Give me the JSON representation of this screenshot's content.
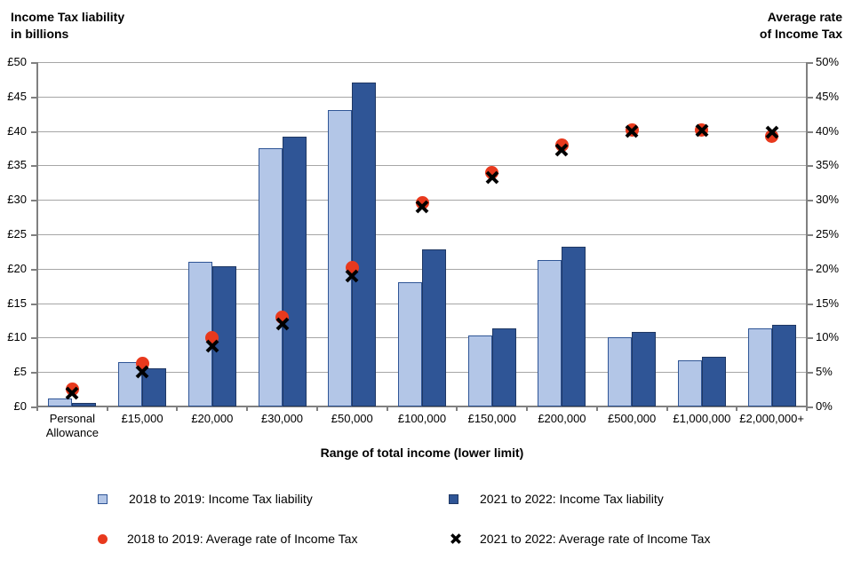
{
  "chart_data": {
    "type": "bar",
    "overlay_type": "scatter",
    "categories": [
      "Personal Allowance",
      "£15,000",
      "£20,000",
      "£30,000",
      "£50,000",
      "£100,000",
      "£150,000",
      "£200,000",
      "£500,000",
      "£1,000,000",
      "£2,000,000+"
    ],
    "bar_series": [
      {
        "name": "2018 to 2019: Income Tax liability",
        "color": "#b3c6e7",
        "border": "#2f5596",
        "values": [
          1.1,
          6.5,
          21.0,
          37.5,
          43.1,
          18.0,
          10.3,
          21.2,
          10.1,
          6.7,
          11.4
        ]
      },
      {
        "name": "2021 to 2022: Income Tax liability",
        "color": "#2f5596",
        "border": "#1f3864",
        "values": [
          0.5,
          5.6,
          20.4,
          39.2,
          47.0,
          22.8,
          11.4,
          23.2,
          10.8,
          7.2,
          11.8
        ]
      }
    ],
    "scatter_series": [
      {
        "name": "2018 to 2019: Average rate of Income Tax",
        "marker": "circle",
        "color": "#e8391d",
        "values": [
          2.5,
          6.3,
          10.0,
          12.9,
          20.2,
          29.6,
          34.0,
          38.0,
          40.1,
          40.2,
          39.3
        ]
      },
      {
        "name": "2021 to 2022: Average rate of Income Tax",
        "marker": "x",
        "color": "#000000",
        "values": [
          1.9,
          5.0,
          8.8,
          12.0,
          18.9,
          29.0,
          33.3,
          37.3,
          40.0,
          40.1,
          39.8
        ]
      }
    ],
    "y_left": {
      "title_line1": "Income Tax liability",
      "title_line2": "in billions",
      "min": 0,
      "max": 50,
      "step": 5,
      "tick_labels": [
        "£0",
        "£5",
        "£10",
        "£15",
        "£20",
        "£25",
        "£30",
        "£35",
        "£40",
        "£45",
        "£50"
      ]
    },
    "y_right": {
      "title_line1": "Average rate",
      "title_line2": "of Income Tax",
      "min": 0,
      "max": 50,
      "step": 5,
      "tick_labels": [
        "0%",
        "5%",
        "10%",
        "15%",
        "20%",
        "25%",
        "30%",
        "35%",
        "40%",
        "45%",
        "50%"
      ]
    },
    "x_axis": {
      "title": "Range of total income (lower limit)"
    },
    "grid": true,
    "legend_position": "bottom",
    "colors": {
      "gridline": "#a6a6a6",
      "axis": "#808080",
      "text": "#000000"
    }
  }
}
